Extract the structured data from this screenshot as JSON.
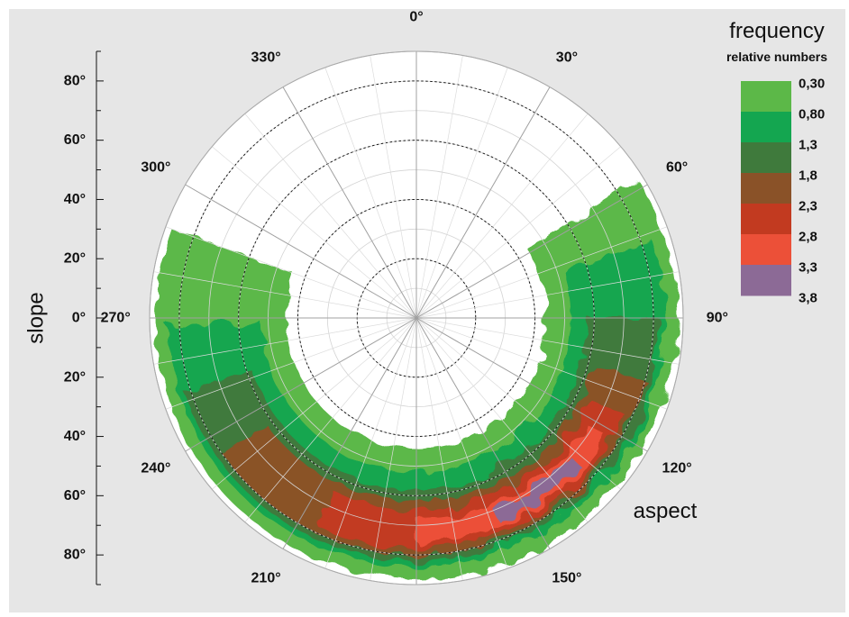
{
  "chart_data": {
    "type": "polar-heatmap",
    "angular_axis": {
      "label": "aspect",
      "ticks": [
        0,
        30,
        60,
        90,
        120,
        150,
        180,
        210,
        240,
        270,
        300,
        330
      ],
      "tick_labels": [
        "0°",
        "30°",
        "60°",
        "90°",
        "120°",
        "150°",
        "180°",
        "210°",
        "240°",
        "270°",
        "300°",
        "330°"
      ],
      "direction": "clockwise",
      "zero_at": "top"
    },
    "radial_axis": {
      "label": "slope",
      "range": [
        0,
        90
      ],
      "major_ticks": [
        20,
        40,
        60,
        80
      ],
      "tick_labels_upper": [
        "80°",
        "60°",
        "40°",
        "20°",
        "0°"
      ],
      "tick_labels_lower": [
        "20°",
        "40°",
        "60°",
        "80°"
      ]
    },
    "legend": {
      "title": "frequency",
      "subtitle": "relative numbers",
      "position": "top-right",
      "levels": [
        "0,30",
        "0,80",
        "1,3",
        "1,8",
        "2,3",
        "2,8",
        "3,3",
        "3,8"
      ],
      "colors": [
        "#5cb848",
        "#14a650",
        "#3f7a3c",
        "#8a5228",
        "#c23a20",
        "#ec5038",
        "#8c6a96"
      ]
    },
    "bands": [
      {
        "level": 0,
        "aspect_range": [
          58,
          290
        ],
        "slope_range": [
          44,
          88
        ]
      },
      {
        "level": 1,
        "aspect_range": [
          72,
          268
        ],
        "slope_range": [
          52,
          84
        ]
      },
      {
        "level": 2,
        "aspect_range": [
          90,
          252
        ],
        "slope_range": [
          58,
          82
        ]
      },
      {
        "level": 3,
        "aspect_range": [
          105,
          235
        ],
        "slope_range": [
          62,
          80
        ]
      },
      {
        "level": 4,
        "aspect_range": [
          115,
          205
        ],
        "slope_range": [
          65,
          78
        ]
      },
      {
        "level": 5,
        "aspect_range": [
          122,
          180
        ],
        "slope_range": [
          68,
          76
        ]
      },
      {
        "level": 6,
        "aspect_range": [
          132,
          158
        ],
        "slope_range": [
          70,
          74
        ]
      }
    ]
  }
}
